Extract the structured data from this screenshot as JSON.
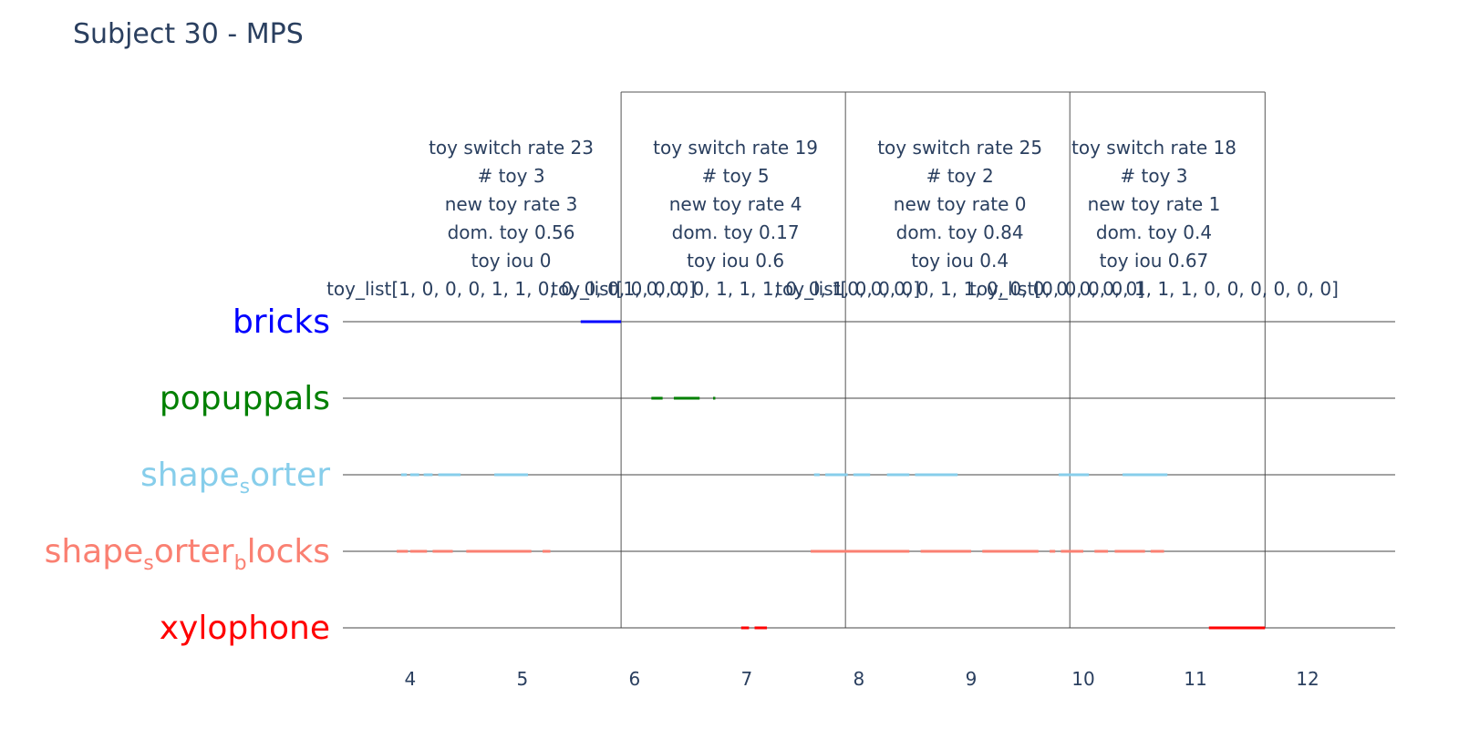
{
  "chart_data": {
    "type": "timeline",
    "title": "Subject 30 - MPS",
    "xlabel": "",
    "ylabel": "",
    "xlim": [
      3.4,
      12.78
    ],
    "x_ticks": [
      4,
      5,
      6,
      7,
      8,
      9,
      10,
      11,
      12
    ],
    "x_tick_labels": [
      "4",
      "5",
      "6",
      "7",
      "8",
      "9",
      "10",
      "11",
      "12"
    ],
    "categories": [
      {
        "key": "bricks",
        "base": "bricks",
        "color": "#0000ff"
      },
      {
        "key": "popuppals",
        "base": "popuppals",
        "color": "#008000"
      },
      {
        "key": "shape_sorter",
        "base": "shape",
        "sub1": "s",
        "rest1": "orter",
        "color": "#87ceeb"
      },
      {
        "key": "shape_sorter_blocks",
        "base": "shape",
        "sub1": "s",
        "rest1": "orter",
        "sub2": "b",
        "rest2": "locks",
        "color": "#fa8072"
      },
      {
        "key": "xylophone",
        "base": "xylophone",
        "color": "#ff0000"
      }
    ],
    "window_boundaries": [
      5.88,
      7.88,
      9.88,
      11.62
    ],
    "segments": {
      "bricks": [
        [
          5.52,
          5.88
        ]
      ],
      "popuppals": [
        [
          6.15,
          6.25
        ],
        [
          6.35,
          6.58
        ],
        [
          6.7,
          6.72
        ]
      ],
      "shape_sorter": [
        [
          3.92,
          3.97
        ],
        [
          4.0,
          4.08
        ],
        [
          4.12,
          4.2
        ],
        [
          4.25,
          4.45
        ],
        [
          4.75,
          5.05
        ],
        [
          7.6,
          7.65
        ],
        [
          7.7,
          7.9
        ],
        [
          7.95,
          8.1
        ],
        [
          8.25,
          8.45
        ],
        [
          8.5,
          8.88
        ],
        [
          9.78,
          10.05
        ],
        [
          10.35,
          10.75
        ]
      ],
      "shape_sorter_blocks": [
        [
          3.88,
          3.98
        ],
        [
          4.0,
          4.15
        ],
        [
          4.2,
          4.38
        ],
        [
          4.5,
          5.08
        ],
        [
          5.18,
          5.25
        ],
        [
          7.57,
          8.45
        ],
        [
          8.55,
          9.0
        ],
        [
          9.1,
          9.6
        ],
        [
          9.7,
          9.75
        ],
        [
          9.8,
          10.0
        ],
        [
          10.1,
          10.22
        ],
        [
          10.28,
          10.55
        ],
        [
          10.6,
          10.72
        ]
      ],
      "xylophone": [
        [
          6.95,
          7.02
        ],
        [
          7.07,
          7.18
        ],
        [
          11.12,
          11.62
        ]
      ]
    },
    "annotations": [
      {
        "x": 4.9,
        "lines": [
          "toy switch rate 23",
          "# toy 3",
          "new toy rate 3",
          "dom. toy 0.56",
          "toy iou 0",
          "toy_list[1, 0, 0, 0, 1, 1, 0, 0, 0, 0, 0, 0, 0]"
        ]
      },
      {
        "x": 6.9,
        "lines": [
          "toy switch rate 19",
          "# toy 5",
          "new toy rate 4",
          "dom. toy 0.17",
          "toy iou 0.6",
          "toy_list[1, 0, 0, 0, 1, 1, 1, 0, 0, 1, 0, 0, 0]"
        ]
      },
      {
        "x": 8.9,
        "lines": [
          "toy switch rate 25",
          "# toy 2",
          "new toy rate 0",
          "dom. toy 0.84",
          "toy iou 0.4",
          "toy_list[0, 0, 0, 0, 1, 1, 0, 0, 0, 0, 0, 0, 0]"
        ]
      },
      {
        "x": 10.63,
        "lines": [
          "toy switch rate 18",
          "# toy 3",
          "new toy rate 1",
          "dom. toy 0.4",
          "toy iou 0.67",
          "toy_list[0, 0, 0, 0, 1, 1, 1, 0, 0, 0, 0, 0, 0]"
        ]
      }
    ]
  }
}
